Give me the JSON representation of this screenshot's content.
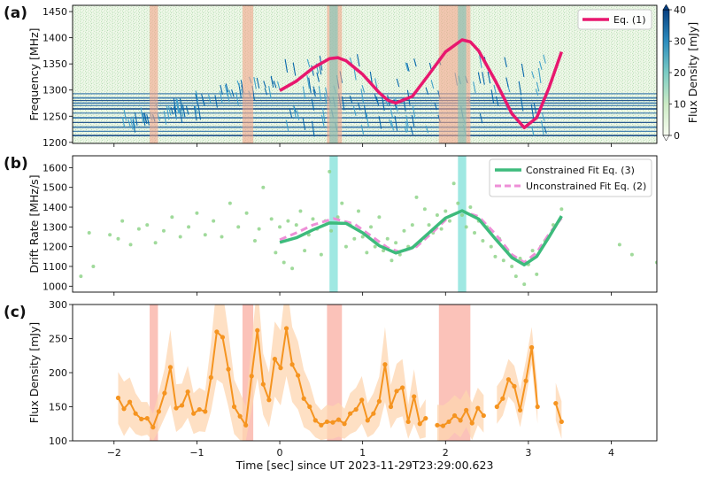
{
  "figure": {
    "x_axis_label": "Time [sec] since UT 2023-11-29T23:29:00.623",
    "x_ticks": [
      -2,
      -1,
      0,
      1,
      2,
      3,
      4
    ],
    "xlim": [
      -2.5,
      4.55
    ]
  },
  "chart_data": [
    {
      "panel": "(a)",
      "type": "heatmap",
      "ylabel": "Frequency [MHz]",
      "ylim": [
        1198,
        1462
      ],
      "y_ticks": [
        1200,
        1250,
        1300,
        1350,
        1400,
        1450
      ],
      "colorbar": {
        "label": "Flux Density [mJy]",
        "range": [
          0,
          40
        ],
        "ticks": [
          0,
          10,
          20,
          30,
          40
        ],
        "colormap": "white-green-blue"
      },
      "rfi_channels_mhz": [
        1213,
        1221,
        1229,
        1238,
        1247,
        1256,
        1264,
        1270,
        1275,
        1280,
        1285,
        1293
      ],
      "shaded_windows_sec": [
        [
          -1.57,
          -1.47
        ],
        [
          -0.45,
          -0.32
        ],
        [
          0.57,
          0.75
        ],
        [
          1.92,
          2.3
        ]
      ],
      "highlight_windows_sec": [
        [
          0.6,
          0.7
        ],
        [
          2.15,
          2.25
        ]
      ],
      "legend": [
        "Eq. (1)"
      ],
      "series": [
        {
          "name": "Eq. (1)",
          "color": "#e8176e",
          "x": [
            0.0,
            0.2,
            0.4,
            0.6,
            0.7,
            0.8,
            1.0,
            1.2,
            1.3,
            1.4,
            1.6,
            1.8,
            2.0,
            2.2,
            2.3,
            2.4,
            2.6,
            2.8,
            2.95,
            3.1,
            3.25,
            3.4
          ],
          "y": [
            1299,
            1317,
            1342,
            1360,
            1362,
            1356,
            1330,
            1295,
            1281,
            1275,
            1288,
            1330,
            1373,
            1396,
            1392,
            1375,
            1318,
            1255,
            1228,
            1247,
            1305,
            1373
          ]
        }
      ]
    },
    {
      "panel": "(b)",
      "type": "scatter",
      "ylabel": "Drift Rate [MHz/s]",
      "ylim": [
        970,
        1660
      ],
      "y_ticks": [
        1000,
        1100,
        1200,
        1300,
        1400,
        1500,
        1600
      ],
      "highlight_windows_sec": [
        [
          0.6,
          0.7
        ],
        [
          2.15,
          2.25
        ]
      ],
      "legend": [
        "Constrained Fit Eq. (3)",
        "Unconstrained Fit Eq. (2)"
      ],
      "series": [
        {
          "name": "Constrained Fit Eq. (3)",
          "color": "#3dbb7c",
          "x": [
            0.0,
            0.2,
            0.4,
            0.6,
            0.8,
            1.0,
            1.2,
            1.4,
            1.6,
            1.8,
            2.0,
            2.2,
            2.4,
            2.6,
            2.8,
            2.95,
            3.1,
            3.25,
            3.4
          ],
          "y": [
            1222,
            1245,
            1285,
            1320,
            1318,
            1270,
            1205,
            1168,
            1195,
            1270,
            1345,
            1382,
            1340,
            1240,
            1145,
            1108,
            1150,
            1250,
            1355
          ]
        },
        {
          "name": "Unconstrained Fit Eq. (2)",
          "color": "#ee8fd7",
          "x": [
            0.0,
            0.2,
            0.4,
            0.65,
            0.9,
            1.1,
            1.3,
            1.45,
            1.65,
            1.85,
            2.05,
            2.2,
            2.4,
            2.6,
            2.8,
            2.95,
            3.1,
            3.25,
            3.4
          ],
          "y": [
            1235,
            1270,
            1310,
            1342,
            1315,
            1255,
            1195,
            1172,
            1200,
            1275,
            1355,
            1380,
            1352,
            1265,
            1160,
            1120,
            1170,
            1265,
            1345
          ]
        },
        {
          "name": "",
          "type": "scatter",
          "color": "#8fd48a",
          "x": [
            -2.4,
            -2.3,
            -2.25,
            -2.05,
            -1.95,
            -1.9,
            -1.8,
            -1.7,
            -1.6,
            -1.5,
            -1.4,
            -1.3,
            -1.2,
            -1.1,
            -1.0,
            -0.9,
            -0.8,
            -0.7,
            -0.6,
            -0.5,
            -0.4,
            -0.3,
            -0.25,
            -0.2,
            -0.1,
            -0.05,
            0.0,
            0.05,
            0.1,
            0.15,
            0.2,
            0.25,
            0.3,
            0.35,
            0.4,
            0.45,
            0.5,
            0.55,
            0.6,
            0.62,
            0.7,
            0.75,
            0.8,
            0.85,
            0.9,
            0.95,
            1.0,
            1.05,
            1.1,
            1.15,
            1.2,
            1.25,
            1.3,
            1.35,
            1.4,
            1.45,
            1.5,
            1.55,
            1.6,
            1.65,
            1.7,
            1.75,
            1.8,
            1.85,
            1.9,
            1.95,
            2.0,
            2.05,
            2.1,
            2.15,
            2.2,
            2.25,
            2.3,
            2.35,
            2.4,
            2.45,
            2.5,
            2.55,
            2.6,
            2.65,
            2.7,
            2.75,
            2.8,
            2.85,
            2.9,
            2.95,
            3.0,
            3.05,
            3.1,
            3.15,
            3.2,
            3.3,
            3.4,
            4.1,
            4.25,
            4.55
          ],
          "y": [
            1050,
            1270,
            1100,
            1260,
            1240,
            1330,
            1210,
            1290,
            1310,
            1220,
            1280,
            1350,
            1250,
            1300,
            1370,
            1260,
            1330,
            1250,
            1420,
            1300,
            1370,
            1230,
            1290,
            1500,
            1340,
            1170,
            1300,
            1120,
            1330,
            1090,
            1310,
            1380,
            1180,
            1260,
            1340,
            1290,
            1160,
            1330,
            1580,
            1280,
            1350,
            1420,
            1200,
            1310,
            1240,
            1380,
            1250,
            1170,
            1300,
            1200,
            1350,
            1180,
            1240,
            1130,
            1220,
            1160,
            1280,
            1200,
            1310,
            1450,
            1230,
            1390,
            1310,
            1270,
            1360,
            1290,
            1380,
            1330,
            1520,
            1420,
            1360,
            1300,
            1400,
            1270,
            1330,
            1230,
            1300,
            1200,
            1150,
            1240,
            1130,
            1180,
            1100,
            1050,
            1140,
            1010,
            1110,
            1180,
            1060,
            1200,
            1230,
            1310,
            1390,
            1210,
            1160,
            1120
          ]
        }
      ]
    },
    {
      "panel": "(c)",
      "type": "line",
      "ylabel": "Flux Density [mJy]",
      "ylim": [
        100,
        300
      ],
      "y_ticks": [
        100,
        150,
        200,
        250,
        300
      ],
      "shaded_windows_sec": [
        [
          -1.57,
          -1.47
        ],
        [
          -0.45,
          -0.32
        ],
        [
          0.57,
          0.75
        ],
        [
          1.92,
          2.3
        ]
      ],
      "series": [
        {
          "name": "",
          "color": "#f59420",
          "band": "±1σ",
          "segments": [
            {
              "x": [
                -1.95,
                -1.88,
                -1.81,
                -1.74,
                -1.67,
                -1.6,
                -1.53,
                -1.46,
                -1.39,
                -1.32,
                -1.25,
                -1.18,
                -1.11,
                -1.04,
                -0.97,
                -0.9,
                -0.83,
                -0.76,
                -0.69,
                -0.62,
                -0.55,
                -0.48,
                -0.41,
                -0.34,
                -0.27,
                -0.2,
                -0.13,
                -0.06,
                0.01,
                0.08,
                0.15,
                0.22,
                0.29,
                0.36,
                0.43,
                0.5,
                0.57,
                0.64,
                0.71,
                0.78,
                0.85,
                0.92,
                0.99,
                1.06,
                1.13,
                1.2,
                1.27,
                1.34,
                1.41,
                1.48,
                1.55,
                1.62,
                1.69,
                1.76
              ],
              "y": [
                163,
                147,
                157,
                140,
                132,
                133,
                120,
                143,
                170,
                208,
                148,
                152,
                172,
                140,
                146,
                143,
                193,
                260,
                252,
                205,
                150,
                136,
                123,
                195,
                262,
                183,
                160,
                220,
                207,
                265,
                212,
                196,
                162,
                150,
                130,
                123,
                128,
                127,
                131,
                125,
                140,
                146,
                160,
                130,
                140,
                158,
                212,
                150,
                173,
                178,
                128,
                165,
                125,
                133
              ]
            },
            {
              "x": [
                1.9,
                1.97,
                2.04,
                2.11,
                2.18,
                2.25,
                2.32,
                2.39,
                2.46
              ],
              "y": [
                123,
                122,
                128,
                137,
                130,
                145,
                126,
                148,
                137
              ]
            },
            {
              "x": [
                2.62,
                2.69,
                2.76,
                2.83,
                2.9,
                2.97,
                3.04,
                3.11
              ],
              "y": [
                150,
                162,
                190,
                180,
                145,
                188,
                237,
                150
              ]
            },
            {
              "x": [
                3.33,
                3.4
              ],
              "y": [
                155,
                128
              ]
            }
          ],
          "sigma": [
            38,
            40,
            36,
            30,
            25,
            24,
            20,
            28,
            36,
            55,
            35,
            32,
            38,
            30,
            32,
            30,
            50,
            70,
            68,
            55,
            40,
            35,
            28,
            50,
            70,
            45,
            40,
            55,
            55,
            70,
            55,
            50,
            42,
            35,
            25,
            22,
            25,
            24,
            25,
            22,
            30,
            32,
            35,
            25,
            30,
            36,
            55,
            32,
            40,
            42,
            25,
            40,
            22,
            28
          ]
        }
      ]
    }
  ]
}
